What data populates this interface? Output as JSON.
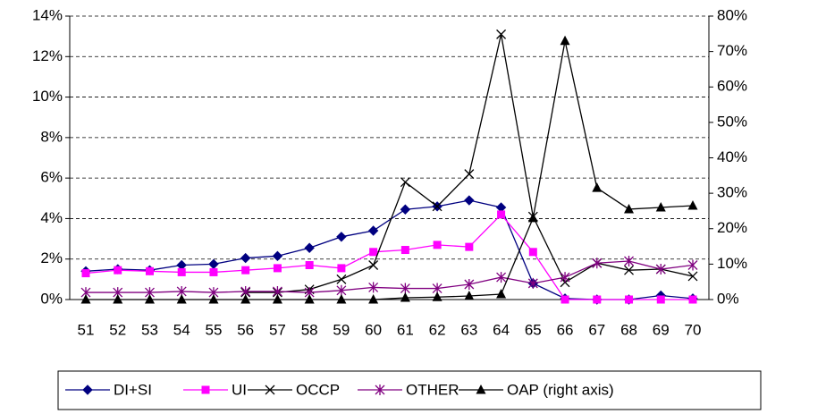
{
  "chart_data": {
    "type": "line",
    "categories": [
      51,
      52,
      53,
      54,
      55,
      56,
      57,
      58,
      59,
      60,
      61,
      62,
      63,
      64,
      65,
      66,
      67,
      68,
      69,
      70
    ],
    "ylim": [
      0,
      14
    ],
    "yticks": [
      {
        "value": 0,
        "label": "0%"
      },
      {
        "value": 2,
        "label": "2%"
      },
      {
        "value": 4,
        "label": "4%"
      },
      {
        "value": 6,
        "label": "6%"
      },
      {
        "value": 8,
        "label": "8%"
      },
      {
        "value": 10,
        "label": "10%"
      },
      {
        "value": 12,
        "label": "12%"
      },
      {
        "value": 14,
        "label": "14%"
      }
    ],
    "y2lim": [
      0,
      80
    ],
    "y2ticks": [
      {
        "value": 0,
        "label": "0%"
      },
      {
        "value": 10,
        "label": "10%"
      },
      {
        "value": 20,
        "label": "20%"
      },
      {
        "value": 30,
        "label": "30%"
      },
      {
        "value": 40,
        "label": "40%"
      },
      {
        "value": 50,
        "label": "50%"
      },
      {
        "value": 60,
        "label": "60%"
      },
      {
        "value": 70,
        "label": "70%"
      },
      {
        "value": 80,
        "label": "80%"
      }
    ],
    "grid": true,
    "series": [
      {
        "name": "DI+SI",
        "color": "#000080",
        "marker": "diamond",
        "values": [
          1.4,
          1.5,
          1.45,
          1.7,
          1.75,
          2.05,
          2.15,
          2.55,
          3.1,
          3.4,
          4.45,
          4.6,
          4.9,
          4.55,
          0.8,
          0.05,
          0,
          0,
          0.2,
          0.05
        ]
      },
      {
        "name": "UI",
        "color": "#ff00ff",
        "marker": "square",
        "values": [
          1.3,
          1.45,
          1.4,
          1.35,
          1.35,
          1.45,
          1.55,
          1.7,
          1.55,
          2.35,
          2.45,
          2.7,
          2.6,
          4.2,
          2.35,
          0,
          0,
          0,
          0,
          0
        ]
      },
      {
        "name": "OCCP",
        "color": "#000000",
        "marker": "x",
        "values": [
          null,
          null,
          null,
          null,
          null,
          0.35,
          0.35,
          0.5,
          1.0,
          1.7,
          5.8,
          4.6,
          6.2,
          13.1,
          4.1,
          0.85,
          1.8,
          1.45,
          1.5,
          1.15
        ]
      },
      {
        "name": "OTHER",
        "color": "#800080",
        "marker": "star",
        "values": [
          0.35,
          0.35,
          0.35,
          0.4,
          0.35,
          0.4,
          0.4,
          0.35,
          0.45,
          0.6,
          0.55,
          0.55,
          0.75,
          1.1,
          0.8,
          1.1,
          1.8,
          1.9,
          1.5,
          1.7
        ]
      },
      {
        "name": "OAP (right axis)",
        "color": "#000000",
        "marker": "triangle",
        "axis": "y2",
        "values": [
          0,
          0,
          0,
          0,
          0,
          0,
          0,
          0,
          0,
          0,
          0.5,
          0.7,
          1,
          1.5,
          23,
          73,
          31.5,
          25.5,
          26,
          26.5
        ]
      }
    ]
  }
}
